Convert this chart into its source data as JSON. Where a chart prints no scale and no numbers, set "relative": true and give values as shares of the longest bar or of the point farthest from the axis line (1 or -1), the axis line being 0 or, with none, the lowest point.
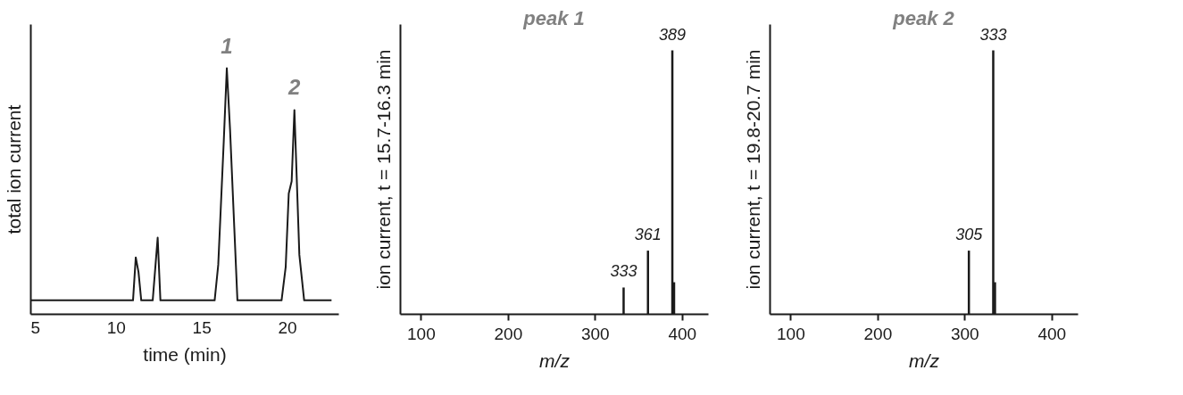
{
  "chart_data": [
    {
      "type": "line",
      "relative": true,
      "xlabel": "time (min)",
      "ylabel": "total ion current",
      "xlim": [
        5,
        23
      ],
      "xticks": [
        5,
        10,
        15,
        20
      ],
      "tick_labels": "x",
      "grid": false,
      "x": [
        5,
        11.0,
        11.16,
        11.32,
        11.48,
        12.15,
        12.44,
        12.6,
        15.77,
        15.98,
        16.3,
        16.48,
        16.67,
        17.1,
        19.68,
        19.92,
        20.1,
        20.27,
        20.43,
        20.72,
        21.0,
        22.6
      ],
      "series": [
        {
          "color": "#1a1a1a",
          "values": [
            0.055,
            0.055,
            0.23,
            0.17,
            0.055,
            0.055,
            0.31,
            0.055,
            0.055,
            0.2,
            0.7,
            1,
            0.75,
            0.055,
            0.055,
            0.19,
            0.49,
            0.54,
            0.83,
            0.24,
            0.055,
            0.055
          ]
        }
      ],
      "annotations": [
        {
          "text": "1",
          "x": 16.48,
          "y": 1
        },
        {
          "text": "2",
          "x": 20.43,
          "y": 0.83
        }
      ]
    },
    {
      "type": "bar",
      "relative": true,
      "title": "peak 1",
      "xlabel": "m/z",
      "ylabel": "ion current, t = 15.7-16.3 min",
      "xlim": [
        76,
        430
      ],
      "xticks": [
        100,
        200,
        300,
        400
      ],
      "tick_labels": "x",
      "grid": false,
      "x": [
        333,
        361,
        389,
        391
      ],
      "series": [
        {
          "color": "#1a1a1a",
          "values": [
            0.1,
            0.24,
            1,
            0.12
          ]
        }
      ],
      "annotations": [
        {
          "text": "333",
          "x": 333,
          "y": 0.1
        },
        {
          "text": "361",
          "x": 361,
          "y": 0.24
        },
        {
          "text": "389",
          "x": 389,
          "y": 1
        }
      ]
    },
    {
      "type": "bar",
      "relative": true,
      "title": "peak 2",
      "xlabel": "m/z",
      "ylabel": "ion current, t = 19.8-20.7 min",
      "xlim": [
        76,
        430
      ],
      "xticks": [
        100,
        200,
        300,
        400
      ],
      "tick_labels": "x",
      "grid": false,
      "x": [
        305,
        333,
        335
      ],
      "series": [
        {
          "color": "#1a1a1a",
          "values": [
            0.24,
            1,
            0.12
          ]
        }
      ],
      "annotations": [
        {
          "text": "305",
          "x": 305,
          "y": 0.24
        },
        {
          "text": "333",
          "x": 333,
          "y": 1
        }
      ]
    }
  ]
}
